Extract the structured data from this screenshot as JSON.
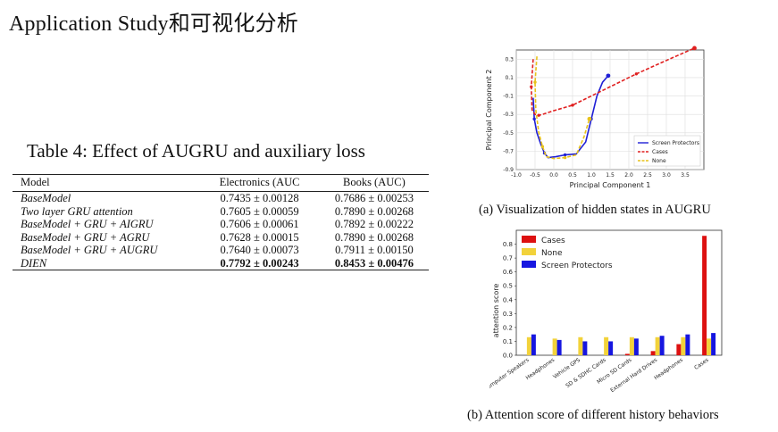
{
  "slide": {
    "title": "Application Study和可视化分析"
  },
  "table": {
    "caption": "Table 4: Effect of AUGRU and auxiliary loss",
    "headers": [
      "Model",
      "Electronics (AUC",
      "Books (AUC)"
    ],
    "rows": [
      {
        "model": "BaseModel",
        "electronics": "0.7435 ± 0.00128",
        "books": "0.7686 ± 0.00253"
      },
      {
        "model": "Two layer GRU attention",
        "electronics": "0.7605 ± 0.00059",
        "books": "0.7890 ± 0.00268"
      },
      {
        "model": "BaseModel + GRU + AIGRU",
        "electronics": "0.7606 ± 0.00061",
        "books": "0.7892 ± 0.00222"
      },
      {
        "model": "BaseModel + GRU + AGRU",
        "electronics": "0.7628 ± 0.00015",
        "books": "0.7890 ± 0.00268"
      },
      {
        "model": "BaseModel + GRU + AUGRU",
        "electronics": "0.7640 ± 0.00073",
        "books": "0.7911 ± 0.00150"
      },
      {
        "model": "DIEN",
        "electronics": "0.7792 ± 0.00243",
        "books": "0.8453 ± 0.00476"
      }
    ]
  },
  "figures": {
    "a_caption": "(a) Visualization of hidden states in AUGRU",
    "b_caption": "(b) Attention score of different history behaviors"
  },
  "chart_data": [
    {
      "type": "line",
      "xlabel": "Principal Component 1",
      "ylabel": "Principal Component 2",
      "xlim": [
        -1.0,
        4.0
      ],
      "ylim": [
        -0.9,
        0.4
      ],
      "xticks": [
        "-1.0",
        "-0.5",
        "0.0",
        "0.5",
        "1.0",
        "1.5",
        "2.0",
        "2.5",
        "3.0",
        "3.5"
      ],
      "yticks": [
        "-0.9",
        "-0.7",
        "-0.5",
        "-0.3",
        "-0.1",
        "0.1",
        "0.3"
      ],
      "grid": true,
      "legend_position": "bottom-right",
      "series": [
        {
          "name": "Screen Protectors",
          "color": "#1f1fd6",
          "style": "solid",
          "x": [
            -0.55,
            -0.52,
            -0.45,
            -0.35,
            -0.25,
            -0.15,
            0.05,
            0.3,
            0.6,
            0.85,
            1.0,
            1.15,
            1.3,
            1.45
          ],
          "y": [
            -0.12,
            -0.35,
            -0.5,
            -0.62,
            -0.72,
            -0.77,
            -0.76,
            -0.74,
            -0.73,
            -0.6,
            -0.35,
            -0.1,
            0.05,
            0.12
          ]
        },
        {
          "name": "Cases",
          "color": "#e02020",
          "style": "dashed",
          "x": [
            -0.55,
            -0.6,
            -0.58,
            -0.5,
            -0.4,
            -0.3,
            0.0,
            0.5,
            1.0,
            1.6,
            2.2,
            2.8,
            3.3,
            3.75
          ],
          "y": [
            0.3,
            0.0,
            -0.25,
            -0.3,
            -0.31,
            -0.3,
            -0.26,
            -0.2,
            -0.1,
            0.02,
            0.14,
            0.25,
            0.34,
            0.42
          ]
        },
        {
          "name": "None",
          "color": "#e8c21a",
          "style": "dashed",
          "x": [
            -0.45,
            -0.5,
            -0.48,
            -0.4,
            -0.3,
            -0.2,
            0.0,
            0.3,
            0.6,
            0.8,
            0.95
          ],
          "y": [
            0.33,
            0.05,
            -0.25,
            -0.5,
            -0.65,
            -0.76,
            -0.78,
            -0.77,
            -0.74,
            -0.55,
            -0.35
          ]
        }
      ]
    },
    {
      "type": "bar",
      "ylabel": "attention score",
      "ylim": [
        0,
        0.9
      ],
      "yticks": [
        "0.0",
        "0.1",
        "0.2",
        "0.3",
        "0.4",
        "0.5",
        "0.6",
        "0.7",
        "0.8"
      ],
      "categories": [
        "Computer Speakers",
        "Headphones",
        "Vehicle GPS",
        "SD & SDHC Cards",
        "Micro SD Cards",
        "External Hard Drives",
        "Headphones",
        "Cases"
      ],
      "legend_position": "top-left",
      "series": [
        {
          "name": "Cases",
          "color": "#dd1111",
          "values": [
            0.0,
            0.0,
            0.0,
            0.0,
            0.01,
            0.03,
            0.08,
            0.86
          ]
        },
        {
          "name": "None",
          "color": "#f2d23a",
          "values": [
            0.13,
            0.12,
            0.13,
            0.13,
            0.13,
            0.13,
            0.13,
            0.12
          ]
        },
        {
          "name": "Screen Protectors",
          "color": "#1616e0",
          "values": [
            0.15,
            0.11,
            0.1,
            0.1,
            0.12,
            0.14,
            0.15,
            0.16
          ]
        }
      ]
    }
  ]
}
